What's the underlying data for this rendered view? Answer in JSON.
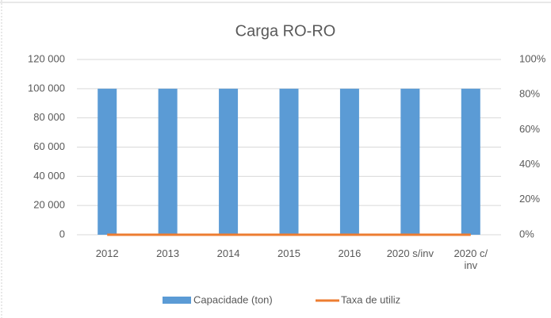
{
  "chart_data": {
    "type": "bar",
    "title": "Carga RO-RO",
    "categories": [
      "2012",
      "2013",
      "2014",
      "2015",
      "2016",
      "2020 s/inv",
      "2020 c/ inv"
    ],
    "series": [
      {
        "name": "Capacidade (ton)",
        "color": "#5b9bd5",
        "type": "bar",
        "values": [
          100000,
          100000,
          100000,
          100000,
          100000,
          100000,
          100000
        ]
      },
      {
        "name": "Taxa de utiliz",
        "color": "#ed7d31",
        "type": "line",
        "axis": "y2",
        "values": [
          0,
          0,
          0,
          0,
          0,
          0,
          0
        ]
      }
    ],
    "ylim": [
      0,
      120000
    ],
    "yticks": [
      {
        "value": 0,
        "label": "0"
      },
      {
        "value": 20000,
        "label": "20 000"
      },
      {
        "value": 40000,
        "label": "40 000"
      },
      {
        "value": 60000,
        "label": "60 000"
      },
      {
        "value": 80000,
        "label": "80 000"
      },
      {
        "value": 100000,
        "label": "100 000"
      },
      {
        "value": 120000,
        "label": "120 000"
      }
    ],
    "y2lim": [
      0,
      100
    ],
    "y2ticks": [
      {
        "value": 0,
        "label": "0%"
      },
      {
        "value": 20,
        "label": "20%"
      },
      {
        "value": 40,
        "label": "40%"
      },
      {
        "value": 60,
        "label": "60%"
      },
      {
        "value": 80,
        "label": "80%"
      },
      {
        "value": 100,
        "label": "100%"
      }
    ],
    "grid": true,
    "legend": "bottom"
  }
}
